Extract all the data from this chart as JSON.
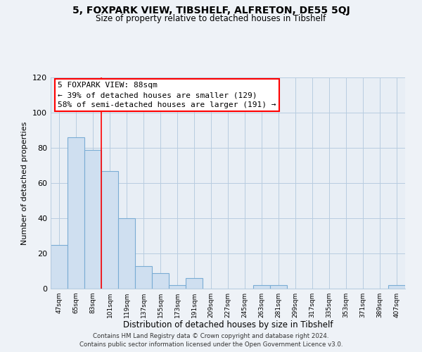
{
  "title": "5, FOXPARK VIEW, TIBSHELF, ALFRETON, DE55 5QJ",
  "subtitle": "Size of property relative to detached houses in Tibshelf",
  "xlabel": "Distribution of detached houses by size in Tibshelf",
  "ylabel": "Number of detached properties",
  "bar_color": "#cfdff0",
  "bar_edge_color": "#7aacd4",
  "categories": [
    "47sqm",
    "65sqm",
    "83sqm",
    "101sqm",
    "119sqm",
    "137sqm",
    "155sqm",
    "173sqm",
    "191sqm",
    "209sqm",
    "227sqm",
    "245sqm",
    "263sqm",
    "281sqm",
    "299sqm",
    "317sqm",
    "335sqm",
    "353sqm",
    "371sqm",
    "389sqm",
    "407sqm"
  ],
  "values": [
    25,
    86,
    79,
    67,
    40,
    13,
    9,
    2,
    6,
    0,
    0,
    0,
    2,
    2,
    0,
    0,
    0,
    0,
    0,
    0,
    2
  ],
  "ylim": [
    0,
    120
  ],
  "yticks": [
    0,
    20,
    40,
    60,
    80,
    100,
    120
  ],
  "red_line_index": 2.5,
  "property_line_label": "5 FOXPARK VIEW: 88sqm",
  "annotation_line1": "← 39% of detached houses are smaller (129)",
  "annotation_line2": "58% of semi-detached houses are larger (191) →",
  "footer_line1": "Contains HM Land Registry data © Crown copyright and database right 2024.",
  "footer_line2": "Contains public sector information licensed under the Open Government Licence v3.0.",
  "background_color": "#eef2f7",
  "plot_bg_color": "#e8eef5"
}
